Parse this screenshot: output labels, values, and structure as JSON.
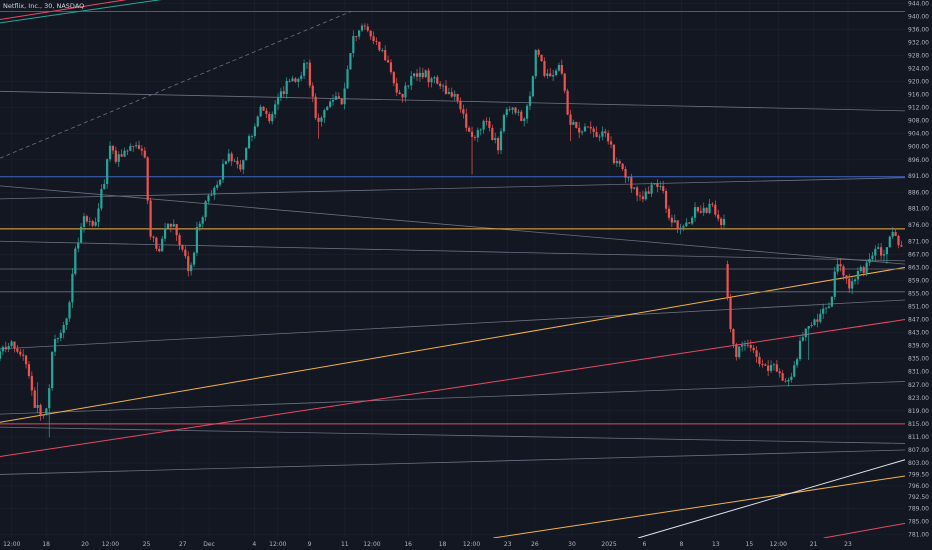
{
  "header": {
    "title": "Netflix, Inc., 30, NASDAQ"
  },
  "colors": {
    "background": "#131722",
    "grid": "#1e2230",
    "up": "#26a69a",
    "down": "#ef5350",
    "yellow": "#f5b342",
    "red": "#e84a5f",
    "blue": "#3d66c7",
    "white": "#e0e3eb",
    "gray": "#6b7080"
  },
  "chart_data": {
    "type": "candlestick",
    "title": "Netflix, Inc., 30, NASDAQ",
    "ylim": [
      780,
      945
    ],
    "xlim": [
      0,
      100
    ],
    "y_ticks": [
      {
        "value": 944,
        "label": "944.00"
      },
      {
        "value": 940,
        "label": "940.00"
      },
      {
        "value": 936,
        "label": "936.00"
      },
      {
        "value": 932,
        "label": "932.00"
      },
      {
        "value": 928,
        "label": "928.00"
      },
      {
        "value": 924,
        "label": "924.00"
      },
      {
        "value": 920,
        "label": "920.00"
      },
      {
        "value": 916,
        "label": "916.00"
      },
      {
        "value": 912,
        "label": "912.00"
      },
      {
        "value": 908,
        "label": "908.00"
      },
      {
        "value": 904,
        "label": "904.00"
      },
      {
        "value": 900,
        "label": "900.00"
      },
      {
        "value": 896,
        "label": "896.00"
      },
      {
        "value": 891,
        "label": "891.00"
      },
      {
        "value": 886,
        "label": "886.00"
      },
      {
        "value": 881,
        "label": "881.00"
      },
      {
        "value": 876,
        "label": "876.00"
      },
      {
        "value": 871,
        "label": "871.00"
      },
      {
        "value": 867,
        "label": "867.00"
      },
      {
        "value": 863,
        "label": "863.00"
      },
      {
        "value": 859,
        "label": "859.00"
      },
      {
        "value": 855,
        "label": "855.00"
      },
      {
        "value": 851,
        "label": "851.00"
      },
      {
        "value": 847,
        "label": "847.00"
      },
      {
        "value": 843,
        "label": "843.00"
      },
      {
        "value": 839,
        "label": "839.00"
      },
      {
        "value": 835,
        "label": "835.00"
      },
      {
        "value": 831,
        "label": "831.00"
      },
      {
        "value": 827,
        "label": "827.00"
      },
      {
        "value": 823,
        "label": "823.00"
      },
      {
        "value": 819,
        "label": "819.00"
      },
      {
        "value": 815,
        "label": "815.00"
      },
      {
        "value": 811,
        "label": "811.00"
      },
      {
        "value": 807,
        "label": "807.00"
      },
      {
        "value": 803,
        "label": "803.00"
      },
      {
        "value": 799.5,
        "label": "799.50"
      },
      {
        "value": 796,
        "label": "796.00"
      },
      {
        "value": 792.5,
        "label": "792.50"
      },
      {
        "value": 789,
        "label": "789.00"
      },
      {
        "value": 785,
        "label": "785.00"
      },
      {
        "value": 781,
        "label": "781.00"
      }
    ],
    "x_ticks": [
      {
        "x": 1.3,
        "label": "12:00"
      },
      {
        "x": 5.1,
        "label": "18"
      },
      {
        "x": 9.4,
        "label": "20"
      },
      {
        "x": 12.2,
        "label": "12:00"
      },
      {
        "x": 16.2,
        "label": "25"
      },
      {
        "x": 20.2,
        "label": "27"
      },
      {
        "x": 23.1,
        "label": "Dec"
      },
      {
        "x": 28.1,
        "label": "4"
      },
      {
        "x": 30.7,
        "label": "12:00"
      },
      {
        "x": 34.2,
        "label": "9"
      },
      {
        "x": 38.1,
        "label": "11"
      },
      {
        "x": 41.1,
        "label": "12:00"
      },
      {
        "x": 45.1,
        "label": "16"
      },
      {
        "x": 48.9,
        "label": "18"
      },
      {
        "x": 52.1,
        "label": "12:00"
      },
      {
        "x": 56.1,
        "label": "23"
      },
      {
        "x": 59.1,
        "label": "26"
      },
      {
        "x": 63.2,
        "label": "30"
      },
      {
        "x": 67.3,
        "label": "2025"
      },
      {
        "x": 71.2,
        "label": "6"
      },
      {
        "x": 75.3,
        "label": "8"
      },
      {
        "x": 79.1,
        "label": "13"
      },
      {
        "x": 82.8,
        "label": "15"
      },
      {
        "x": 86.0,
        "label": "12:00"
      },
      {
        "x": 89.9,
        "label": "21"
      },
      {
        "x": 93.7,
        "label": "23"
      }
    ],
    "horizontal_lines": [
      {
        "price": 941.5,
        "color": "gray",
        "width": 0.8
      },
      {
        "price": 890.8,
        "color": "blue",
        "width": 1.0
      },
      {
        "price": 874.8,
        "color": "yellow",
        "width": 1.0
      },
      {
        "price": 862.5,
        "color": "gray",
        "width": 0.8
      },
      {
        "price": 855.5,
        "color": "gray",
        "width": 0.8
      },
      {
        "price": 815.0,
        "color": "red",
        "width": 1.0
      }
    ],
    "trend_lines": [
      {
        "x1": 0,
        "y1": 917,
        "x2": 100,
        "y2": 911,
        "color": "gray",
        "dashed": false,
        "width": 0.8
      },
      {
        "x1": 0,
        "y1": 884,
        "x2": 100,
        "y2": 890.5,
        "color": "gray",
        "dashed": false,
        "width": 0.8
      },
      {
        "x1": 0,
        "y1": 888,
        "x2": 100,
        "y2": 864,
        "color": "gray",
        "dashed": false,
        "width": 0.8
      },
      {
        "x1": 0,
        "y1": 871,
        "x2": 100,
        "y2": 865,
        "color": "gray",
        "dashed": false,
        "width": 0.8
      },
      {
        "x1": 0,
        "y1": 838,
        "x2": 100,
        "y2": 853,
        "color": "gray",
        "dashed": false,
        "width": 0.8
      },
      {
        "x1": 0,
        "y1": 818,
        "x2": 100,
        "y2": 828,
        "color": "gray",
        "dashed": false,
        "width": 0.8
      },
      {
        "x1": 0,
        "y1": 814,
        "x2": 100,
        "y2": 809,
        "color": "gray",
        "dashed": false,
        "width": 0.8
      },
      {
        "x1": 0,
        "y1": 799.5,
        "x2": 100,
        "y2": 807,
        "color": "gray",
        "dashed": false,
        "width": 0.8
      },
      {
        "x1": 0,
        "y1": 896.5,
        "x2": 38.8,
        "y2": 941.5,
        "color": "gray",
        "dashed": true,
        "width": 0.8
      },
      {
        "x1": 0,
        "y1": 815.5,
        "x2": 100,
        "y2": 863,
        "color": "yellow",
        "dashed": false,
        "width": 1.0
      },
      {
        "x1": 0,
        "y1": 805,
        "x2": 100,
        "y2": 847,
        "color": "red",
        "dashed": false,
        "width": 1.0
      },
      {
        "x1": 54.5,
        "y1": 780,
        "x2": 100,
        "y2": 799,
        "color": "yellow",
        "dashed": false,
        "width": 1.0
      },
      {
        "x1": 70.5,
        "y1": 780,
        "x2": 100,
        "y2": 804,
        "color": "white",
        "dashed": false,
        "width": 1.0
      },
      {
        "x1": 91,
        "y1": 780,
        "x2": 100,
        "y2": 784.5,
        "color": "red",
        "dashed": false,
        "width": 1.0
      },
      {
        "x1": 0,
        "y1": 939,
        "x2": 16,
        "y2": 946,
        "color": "red",
        "dashed": false,
        "width": 1.0
      },
      {
        "x1": 0,
        "y1": 938,
        "x2": 20,
        "y2": 946,
        "color": "up",
        "dashed": false,
        "width": 1.0
      }
    ],
    "price_path": [
      [
        0,
        835
      ],
      [
        1.5,
        840
      ],
      [
        3.0,
        836
      ],
      [
        3.6,
        830
      ],
      [
        4.1,
        821
      ],
      [
        4.8,
        818
      ],
      [
        5.5,
        820
      ],
      [
        6.2,
        840
      ],
      [
        7.2,
        845
      ],
      [
        7.8,
        849
      ],
      [
        8.6,
        868
      ],
      [
        9.6,
        878
      ],
      [
        10.8,
        876
      ],
      [
        12.0,
        892
      ],
      [
        12.5,
        902
      ],
      [
        13.1,
        896
      ],
      [
        14.2,
        898
      ],
      [
        15.5,
        901
      ],
      [
        16.3,
        897
      ],
      [
        17.0,
        872
      ],
      [
        17.8,
        868
      ],
      [
        18.5,
        874
      ],
      [
        19.3,
        877
      ],
      [
        20.3,
        870
      ],
      [
        21.3,
        861
      ],
      [
        22.2,
        876
      ],
      [
        23.2,
        883
      ],
      [
        24.2,
        888
      ],
      [
        25.5,
        898
      ],
      [
        26.7,
        893
      ],
      [
        27.7,
        901
      ],
      [
        29.0,
        911
      ],
      [
        30.3,
        909
      ],
      [
        31.2,
        916
      ],
      [
        32.3,
        920
      ],
      [
        33.5,
        922
      ],
      [
        34.1,
        928
      ],
      [
        35.3,
        908
      ],
      [
        36.3,
        912
      ],
      [
        37.3,
        916
      ],
      [
        38.2,
        914
      ],
      [
        39.3,
        933
      ],
      [
        40.3,
        937
      ],
      [
        41.3,
        934
      ],
      [
        42.3,
        929
      ],
      [
        43.3,
        927
      ],
      [
        44.3,
        914
      ],
      [
        45.3,
        919
      ],
      [
        46.3,
        922
      ],
      [
        47.3,
        922
      ],
      [
        48.3,
        920
      ],
      [
        49.3,
        918
      ],
      [
        50.3,
        916
      ],
      [
        51.3,
        911
      ],
      [
        52.3,
        902
      ],
      [
        53.3,
        906
      ],
      [
        54.3,
        907
      ],
      [
        55.3,
        899
      ],
      [
        56.3,
        913
      ],
      [
        57.3,
        911
      ],
      [
        58.3,
        907
      ],
      [
        59.3,
        924
      ],
      [
        59.6,
        932
      ],
      [
        60.3,
        923
      ],
      [
        61.3,
        921
      ],
      [
        62.3,
        925
      ],
      [
        63.0,
        910
      ],
      [
        64.3,
        903
      ],
      [
        65.3,
        906
      ],
      [
        66.3,
        903
      ],
      [
        67.3,
        905
      ],
      [
        68.3,
        895
      ],
      [
        69.3,
        892
      ],
      [
        70.3,
        887
      ],
      [
        71.3,
        885
      ],
      [
        72.3,
        887
      ],
      [
        73.3,
        888
      ],
      [
        74.3,
        878
      ],
      [
        75.3,
        875
      ],
      [
        76.3,
        877
      ],
      [
        77.3,
        881
      ],
      [
        78.3,
        880
      ],
      [
        79.1,
        882
      ],
      [
        80.1,
        877
      ]
    ],
    "price_path_2": [
      [
        80.4,
        864
      ],
      [
        81.0,
        846
      ],
      [
        81.5,
        836
      ],
      [
        82.3,
        840
      ],
      [
        83.2,
        837
      ],
      [
        84.2,
        835
      ],
      [
        85.2,
        831
      ],
      [
        86.0,
        833
      ],
      [
        87.0,
        829
      ],
      [
        87.6,
        827
      ],
      [
        88.6,
        838
      ],
      [
        89.4,
        846
      ],
      [
        90.3,
        847
      ],
      [
        91.1,
        849
      ],
      [
        92.2,
        852
      ],
      [
        92.8,
        866
      ],
      [
        93.4,
        860
      ],
      [
        94.2,
        857
      ],
      [
        95.2,
        861
      ],
      [
        96.2,
        864
      ],
      [
        97.2,
        868
      ],
      [
        98.0,
        866
      ],
      [
        99.0,
        874
      ],
      [
        99.6,
        869
      ]
    ]
  }
}
